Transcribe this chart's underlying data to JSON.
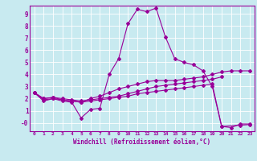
{
  "xlabel": "Windchill (Refroidissement éolien,°C)",
  "background_color": "#c8eaf0",
  "line_color": "#990099",
  "xlim": [
    -0.5,
    23.5
  ],
  "ylim": [
    -0.7,
    9.7
  ],
  "yticks": [
    0,
    1,
    2,
    3,
    4,
    5,
    6,
    7,
    8,
    9
  ],
  "ytick_labels": [
    "-0",
    "1",
    "2",
    "3",
    "4",
    "5",
    "6",
    "7",
    "8",
    "9"
  ],
  "xticks": [
    0,
    1,
    2,
    3,
    4,
    5,
    6,
    7,
    8,
    9,
    10,
    11,
    12,
    13,
    14,
    15,
    16,
    17,
    18,
    19,
    20,
    21,
    22,
    23
  ],
  "line1_x": [
    0,
    1,
    2,
    3,
    4,
    5,
    6,
    7,
    8,
    9,
    10,
    11,
    12,
    13,
    14,
    15,
    16,
    17,
    18,
    19,
    20,
    21,
    22,
    23
  ],
  "line1_y": [
    2.5,
    1.8,
    2.0,
    1.8,
    1.7,
    0.4,
    1.1,
    1.2,
    4.0,
    5.3,
    8.2,
    9.4,
    9.2,
    9.5,
    7.1,
    5.3,
    5.0,
    4.8,
    4.3,
    3.0,
    -0.3,
    -0.4,
    -0.1,
    -0.1
  ],
  "line2_x": [
    0,
    1,
    2,
    3,
    4,
    5,
    6,
    7,
    8,
    9,
    10,
    11,
    12,
    13,
    14,
    15,
    16,
    17,
    18,
    19,
    20,
    21,
    22,
    23
  ],
  "line2_y": [
    2.5,
    2.0,
    2.1,
    1.9,
    1.8,
    1.7,
    2.0,
    2.2,
    2.5,
    2.8,
    3.0,
    3.2,
    3.4,
    3.5,
    3.5,
    3.5,
    3.6,
    3.7,
    3.8,
    4.0,
    4.2,
    4.3,
    4.3,
    4.3
  ],
  "line3_x": [
    0,
    1,
    2,
    3,
    4,
    5,
    6,
    7,
    8,
    9,
    10,
    11,
    12,
    13,
    14,
    15,
    16,
    17,
    18,
    19,
    20
  ],
  "line3_y": [
    2.5,
    2.0,
    2.1,
    2.0,
    1.9,
    1.8,
    1.9,
    2.0,
    2.1,
    2.2,
    2.4,
    2.6,
    2.8,
    3.0,
    3.1,
    3.2,
    3.3,
    3.4,
    3.5,
    3.6,
    3.8
  ],
  "line4_x": [
    0,
    1,
    2,
    3,
    4,
    5,
    6,
    7,
    8,
    9,
    10,
    11,
    12,
    13,
    14,
    15,
    16,
    17,
    18,
    19,
    20,
    22,
    23
  ],
  "line4_y": [
    2.5,
    1.9,
    2.0,
    1.9,
    1.8,
    1.7,
    1.8,
    1.9,
    2.0,
    2.1,
    2.2,
    2.4,
    2.5,
    2.6,
    2.7,
    2.8,
    2.9,
    3.0,
    3.1,
    3.2,
    -0.3,
    -0.2,
    -0.15
  ]
}
